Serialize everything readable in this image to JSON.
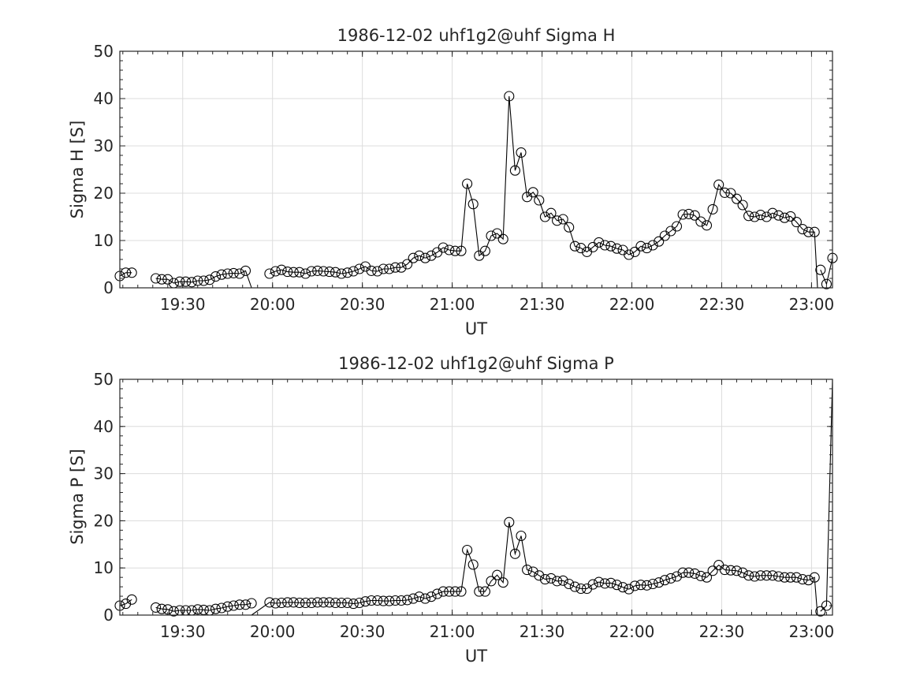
{
  "chart_data": [
    {
      "type": "scatter",
      "title": "1986-12-02  uhf1g2@uhf Sigma H",
      "xlabel": "UT",
      "ylabel": "Sigma H [S]",
      "xlim": [
        "19:09",
        "23:07"
      ],
      "ylim": [
        0,
        50
      ],
      "xticks": [
        "19:30",
        "20:00",
        "20:30",
        "21:00",
        "21:30",
        "22:00",
        "22:30",
        "23:00"
      ],
      "yticks": [
        0,
        10,
        20,
        30,
        40,
        50
      ],
      "grid": true,
      "legend": "none",
      "series": [
        {
          "segments": [
            {
              "x": [
                "19:09",
                "19:11",
                "19:13"
              ],
              "y": [
                2.5,
                3.2,
                3.2
              ]
            },
            {
              "x": [
                "19:21",
                "19:23",
                "19:25",
                "19:27",
                "19:29",
                "19:31",
                "19:33",
                "19:35",
                "19:37",
                "19:39",
                "19:41",
                "19:43",
                "19:45",
                "19:47",
                "19:49",
                "19:51",
                "19:53"
              ],
              "y": [
                2.0,
                1.8,
                1.8,
                1.0,
                1.3,
                1.3,
                1.2,
                1.5,
                1.5,
                1.7,
                2.4,
                2.8,
                3.0,
                3.1,
                3.0,
                3.6,
                0
              ]
            },
            {
              "x": [
                "19:59",
                "20:01",
                "20:03",
                "20:05",
                "20:07",
                "20:09",
                "20:11",
                "20:13",
                "20:15",
                "20:17",
                "20:19",
                "20:21",
                "20:23",
                "20:25",
                "20:27",
                "20:29",
                "20:31",
                "20:33",
                "20:35",
                "20:37",
                "20:39",
                "20:41",
                "20:43",
                "20:45",
                "20:47",
                "20:49",
                "20:51",
                "20:53",
                "20:55",
                "20:57",
                "20:59",
                "21:01",
                "21:03",
                "21:05",
                "21:07",
                "21:09",
                "21:11",
                "21:13",
                "21:15",
                "21:17",
                "21:19",
                "21:21",
                "21:23",
                "21:25",
                "21:27",
                "21:29",
                "21:31",
                "21:33",
                "21:35",
                "21:37",
                "21:39",
                "21:41",
                "21:43",
                "21:45",
                "21:47",
                "21:49",
                "21:51",
                "21:53",
                "21:55",
                "21:57",
                "21:59",
                "22:01",
                "22:03",
                "22:05",
                "22:07",
                "22:09",
                "22:11",
                "22:13",
                "22:15",
                "22:17",
                "22:19",
                "22:21",
                "22:23",
                "22:25",
                "22:27",
                "22:29",
                "22:31",
                "22:33",
                "22:35",
                "22:37",
                "22:39",
                "22:41",
                "22:43",
                "22:45",
                "22:47",
                "22:49",
                "22:51",
                "22:53",
                "22:55",
                "22:57",
                "22:59",
                "23:01",
                "23:02"
              ],
              "y": [
                3.0,
                3.5,
                3.8,
                3.4,
                3.3,
                3.3,
                3.0,
                3.5,
                3.6,
                3.5,
                3.4,
                3.3,
                3.0,
                3.2,
                3.5,
                4.0,
                4.5,
                3.6,
                3.5,
                4.0,
                4.0,
                4.3,
                4.3,
                5.0,
                6.3,
                6.8,
                6.3,
                6.8,
                7.5,
                8.5,
                8.0,
                7.8,
                7.8,
                22.0,
                17.7,
                6.8,
                7.8,
                11.0,
                11.5,
                10.3,
                40.5,
                24.8,
                28.6,
                19.2,
                20.2,
                18.5,
                15.0,
                15.8,
                14.2,
                14.5,
                12.8,
                8.8,
                8.4,
                7.6,
                8.6,
                9.6,
                9.0,
                8.8,
                8.3,
                8.0,
                7.0,
                7.6,
                8.8,
                8.4,
                9.0,
                9.8,
                11.0,
                12.0,
                13.0,
                15.5,
                15.6,
                15.3,
                14.0,
                13.2,
                16.6,
                21.8,
                20.1,
                20.0,
                18.8,
                17.5,
                15.2,
                15.0,
                15.4,
                15.0,
                15.8,
                15.3,
                14.8,
                15.1,
                13.9,
                12.4,
                11.8,
                11.8,
                0
              ]
            },
            {
              "x": [
                "23:03",
                "23:05",
                "23:07"
              ],
              "y": [
                3.8,
                0.8,
                6.3
              ]
            }
          ]
        }
      ]
    },
    {
      "type": "scatter",
      "title": "1986-12-02  uhf1g2@uhf Sigma P",
      "xlabel": "UT",
      "ylabel": "Sigma P [S]",
      "xlim": [
        "19:09",
        "23:07"
      ],
      "ylim": [
        0,
        50
      ],
      "xticks": [
        "19:30",
        "20:00",
        "20:30",
        "21:00",
        "21:30",
        "22:00",
        "22:30",
        "23:00"
      ],
      "yticks": [
        0,
        10,
        20,
        30,
        40,
        50
      ],
      "grid": true,
      "legend": "none",
      "series": [
        {
          "segments": [
            {
              "x": [
                "19:09",
                "19:11",
                "19:13"
              ],
              "y": [
                2.0,
                2.4,
                3.3
              ]
            },
            {
              "x": [
                "19:21",
                "19:23",
                "19:25",
                "19:27",
                "19:29",
                "19:31",
                "19:33",
                "19:35",
                "19:37",
                "19:39",
                "19:41",
                "19:43",
                "19:45",
                "19:47",
                "19:49",
                "19:51",
                "19:53"
              ],
              "y": [
                1.6,
                1.3,
                1.2,
                0.8,
                1.0,
                1.0,
                1.0,
                1.2,
                1.1,
                1.0,
                1.3,
                1.5,
                1.8,
                2.0,
                2.2,
                2.2,
                2.5
              ]
            },
            {
              "x": [
                "19:53",
                "19:59",
                "20:01",
                "20:03",
                "20:05",
                "20:07",
                "20:09",
                "20:11",
                "20:13",
                "20:15",
                "20:17",
                "20:19",
                "20:21",
                "20:23",
                "20:25",
                "20:27",
                "20:29",
                "20:31",
                "20:33",
                "20:35",
                "20:37",
                "20:39",
                "20:41",
                "20:43",
                "20:45",
                "20:47",
                "20:49",
                "20:51",
                "20:53",
                "20:55",
                "20:57",
                "20:59",
                "21:01",
                "21:03",
                "21:05",
                "21:07",
                "21:09",
                "21:11",
                "21:13",
                "21:15",
                "21:17",
                "21:19",
                "21:21",
                "21:23",
                "21:25",
                "21:27",
                "21:29",
                "21:31",
                "21:33",
                "21:35",
                "21:37",
                "21:39",
                "21:41",
                "21:43",
                "21:45",
                "21:47",
                "21:49",
                "21:51",
                "21:53",
                "21:55",
                "21:57",
                "21:59",
                "22:01",
                "22:03",
                "22:05",
                "22:07",
                "22:09",
                "22:11",
                "22:13",
                "22:15",
                "22:17",
                "22:19",
                "22:21",
                "22:23",
                "22:25",
                "22:27",
                "22:29",
                "22:31",
                "22:33",
                "22:35",
                "22:37",
                "22:39",
                "22:41",
                "22:43",
                "22:45",
                "22:47",
                "22:49",
                "22:51",
                "22:53",
                "22:55",
                "22:57",
                "22:59",
                "23:01",
                "23:02"
              ],
              "y": [
                0,
                2.7,
                2.5,
                2.6,
                2.7,
                2.7,
                2.6,
                2.6,
                2.6,
                2.7,
                2.7,
                2.7,
                2.6,
                2.6,
                2.6,
                2.4,
                2.6,
                2.9,
                3.1,
                3.1,
                3.0,
                3.0,
                3.1,
                3.1,
                3.2,
                3.5,
                3.9,
                3.5,
                3.9,
                4.5,
                5.0,
                5.0,
                5.0,
                5.0,
                13.8,
                10.7,
                5.0,
                5.0,
                7.2,
                8.5,
                6.9,
                19.7,
                13.0,
                16.8,
                9.6,
                9.2,
                8.4,
                7.6,
                7.8,
                7.2,
                7.3,
                6.6,
                6.0,
                5.6,
                5.6,
                6.5,
                7.0,
                6.7,
                6.8,
                6.4,
                5.9,
                5.5,
                6.2,
                6.4,
                6.3,
                6.6,
                6.9,
                7.4,
                7.8,
                8.2,
                9.0,
                9.0,
                8.8,
                8.3,
                8.0,
                9.4,
                10.6,
                9.6,
                9.5,
                9.4,
                9.0,
                8.4,
                8.2,
                8.4,
                8.4,
                8.4,
                8.2,
                8.0,
                8.0,
                8.0,
                7.6,
                7.4,
                8.0,
                0
              ]
            },
            {
              "x": [
                "23:03",
                "23:05",
                "23:07"
              ],
              "y": [
                0.8,
                2.0,
                50
              ]
            }
          ]
        }
      ]
    }
  ]
}
